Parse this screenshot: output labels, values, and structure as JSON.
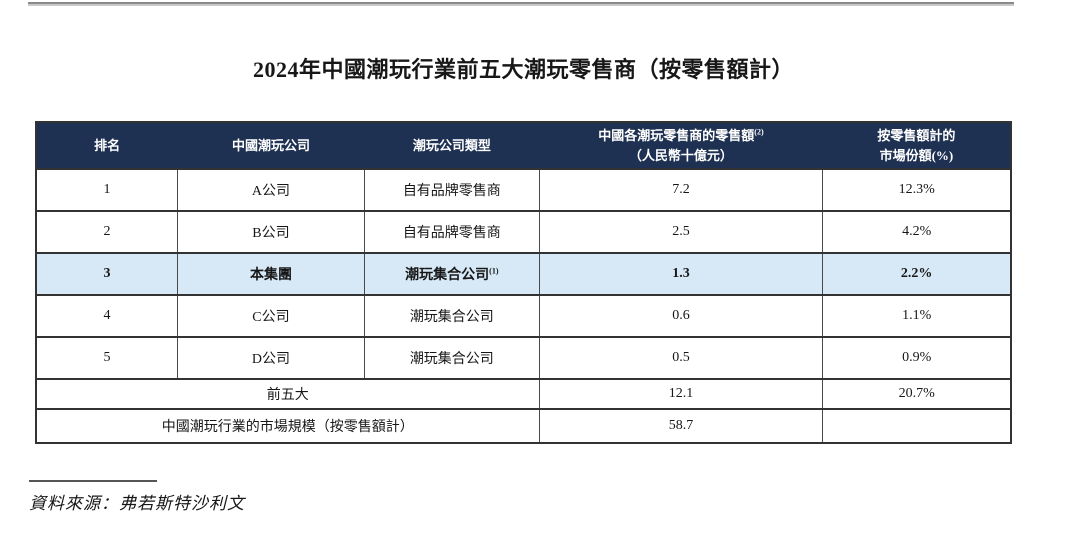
{
  "page": {
    "title": "2024年中國潮玩行業前五大潮玩零售商（按零售額計）",
    "source_note": "資料來源：弗若斯特沙利文"
  },
  "colors": {
    "header_bg": "#1e3152",
    "header_text": "#ffffff",
    "highlight_row_bg": "#d7e9f6",
    "border": "#333333",
    "top_rule": "#8a8a8a"
  },
  "table": {
    "headers": {
      "rank": "排名",
      "company": "中國潮玩公司",
      "type": "潮玩公司類型",
      "sales_line1": "中國各潮玩零售商的零售額",
      "sales_sup": "(2)",
      "sales_line2": "（人民幣十億元）",
      "share_line1": "按零售額計的",
      "share_line2": "市場份額(%)"
    },
    "rows": [
      {
        "rank": "1",
        "company": "A公司",
        "type": "自有品牌零售商",
        "type_sup": "",
        "sales": "7.2",
        "share": "12.3%"
      },
      {
        "rank": "2",
        "company": "B公司",
        "type": "自有品牌零售商",
        "type_sup": "",
        "sales": "2.5",
        "share": "4.2%"
      },
      {
        "rank": "3",
        "company": "本集團",
        "type": "潮玩集合公司",
        "type_sup": "(1)",
        "sales": "1.3",
        "share": "2.2%"
      },
      {
        "rank": "4",
        "company": "C公司",
        "type": "潮玩集合公司",
        "type_sup": "",
        "sales": "0.6",
        "share": "1.1%"
      },
      {
        "rank": "5",
        "company": "D公司",
        "type": "潮玩集合公司",
        "type_sup": "",
        "sales": "0.5",
        "share": "0.9%"
      }
    ],
    "summary_rows": [
      {
        "label": "前五大",
        "sales": "12.1",
        "share": "20.7%"
      },
      {
        "label": "中國潮玩行業的市場規模（按零售額計）",
        "sales": "58.7",
        "share": ""
      }
    ]
  }
}
